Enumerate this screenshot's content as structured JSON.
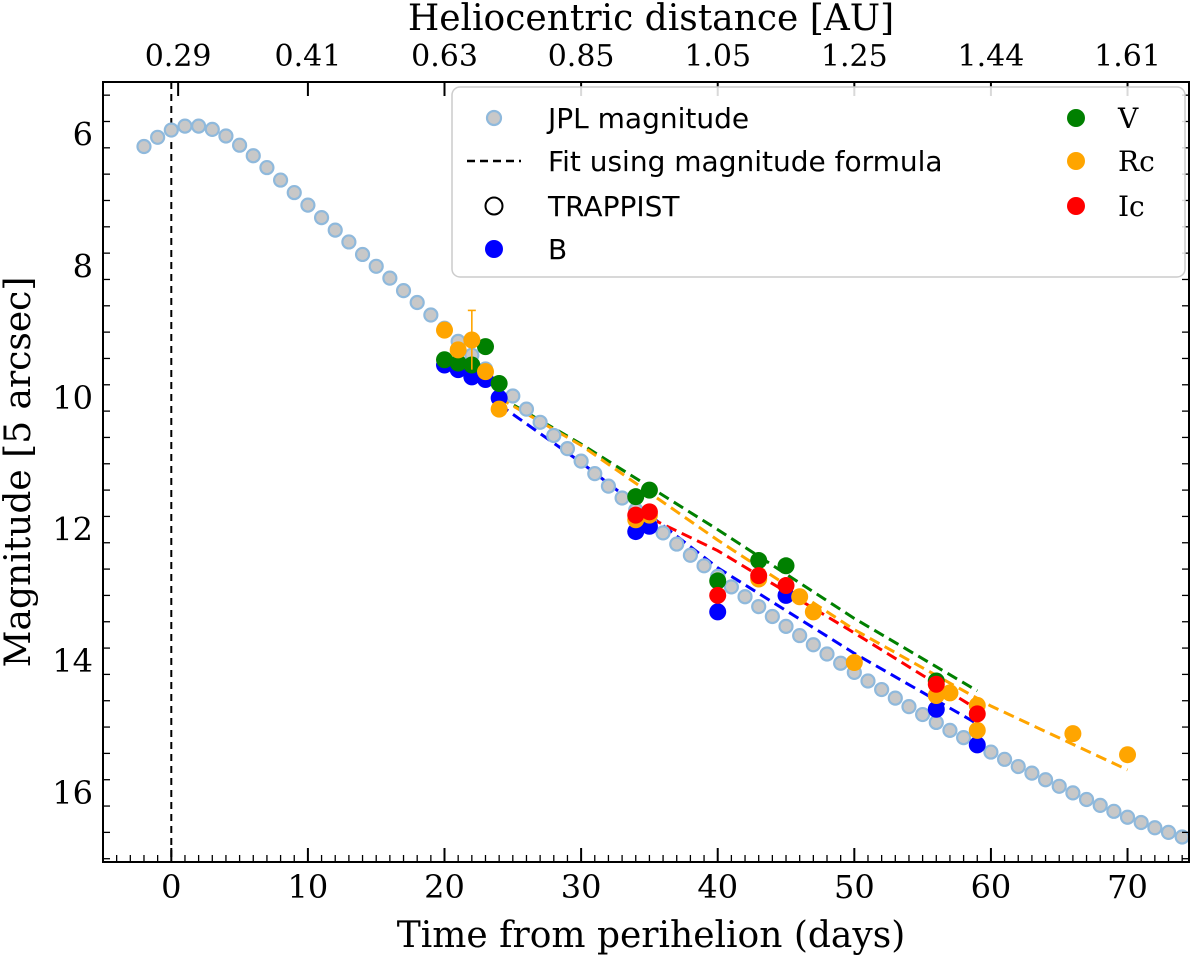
{
  "chart_data": {
    "type": "scatter",
    "title": "",
    "xlabel": "Time from perihelion (days)",
    "ylabel": "Magnitude [5 arcsec]",
    "top_axis_label": "Heliocentric distance [AU]",
    "xlim": [
      -5,
      74.5
    ],
    "ylim": [
      17.05,
      5.2
    ],
    "y_inverted": true,
    "x_ticks": [
      0,
      10,
      20,
      30,
      40,
      50,
      60,
      70
    ],
    "y_ticks": [
      6,
      8,
      10,
      12,
      14,
      16
    ],
    "top_ticks": [
      {
        "x": 0.5,
        "label": "0.29"
      },
      {
        "x": 10,
        "label": "0.41"
      },
      {
        "x": 20,
        "label": "0.63"
      },
      {
        "x": 30,
        "label": "0.85"
      },
      {
        "x": 40,
        "label": "1.05"
      },
      {
        "x": 50,
        "label": "1.25"
      },
      {
        "x": 60,
        "label": "1.44"
      },
      {
        "x": 70,
        "label": "1.61"
      }
    ],
    "perihelion_line_x": 0,
    "legend": {
      "placement": "top-right",
      "entries": [
        {
          "label": "JPL magnitude",
          "marker": "jpl"
        },
        {
          "label": "Fit using magnitude formula",
          "marker": "dashed"
        },
        {
          "label": "TRAPPIST",
          "marker": "open-circle"
        },
        {
          "label": "B",
          "marker": "B"
        },
        {
          "label": "V",
          "marker": "V"
        },
        {
          "label": "Rc",
          "marker": "Rc"
        },
        {
          "label": "Ic",
          "marker": "Ic"
        }
      ]
    },
    "colors": {
      "jpl_fill": "#c8c8c8",
      "jpl_edge": "#8fb9dc",
      "B": "#0000ff",
      "V": "#008000",
      "Rc": "#ffa500",
      "Ic": "#ff0000",
      "axis": "#000000"
    },
    "series": [
      {
        "name": "JPL magnitude",
        "key": "jpl",
        "x": [
          -2,
          -1,
          0,
          1,
          2,
          3,
          4,
          5,
          6,
          7,
          8,
          9,
          10,
          11,
          12,
          13,
          14,
          15,
          16,
          17,
          18,
          19,
          20,
          21,
          22,
          23,
          24,
          25,
          26,
          27,
          28,
          29,
          30,
          31,
          32,
          33,
          34,
          35,
          36,
          37,
          38,
          39,
          40,
          41,
          42,
          43,
          44,
          45,
          46,
          47,
          48,
          49,
          50,
          51,
          52,
          53,
          54,
          55,
          56,
          57,
          58,
          59,
          60,
          61,
          62,
          63,
          64,
          65,
          66,
          67,
          68,
          69,
          70,
          71,
          72,
          73,
          74
        ],
        "y": [
          6.18,
          6.04,
          5.93,
          5.87,
          5.87,
          5.92,
          6.02,
          6.16,
          6.32,
          6.5,
          6.69,
          6.88,
          7.07,
          7.26,
          7.45,
          7.63,
          7.82,
          8.0,
          8.18,
          8.37,
          8.55,
          8.74,
          8.94,
          9.14,
          9.35,
          9.56,
          9.77,
          9.97,
          10.17,
          10.37,
          10.57,
          10.77,
          10.96,
          11.15,
          11.34,
          11.52,
          11.7,
          11.88,
          12.05,
          12.22,
          12.39,
          12.55,
          12.71,
          12.87,
          13.02,
          13.17,
          13.32,
          13.47,
          13.61,
          13.75,
          13.89,
          14.03,
          14.17,
          14.3,
          14.43,
          14.56,
          14.69,
          14.81,
          14.93,
          15.05,
          15.16,
          15.27,
          15.38,
          15.49,
          15.6,
          15.7,
          15.8,
          15.9,
          16.0,
          16.1,
          16.19,
          16.28,
          16.37,
          16.45,
          16.53,
          16.6,
          16.67
        ]
      },
      {
        "name": "B",
        "key": "B",
        "x": [
          20,
          21,
          22,
          23,
          24,
          34,
          35,
          40,
          45,
          56,
          59
        ],
        "y": [
          9.5,
          9.57,
          9.68,
          9.72,
          10.0,
          12.03,
          11.95,
          13.25,
          13.0,
          14.73,
          15.27
        ]
      },
      {
        "name": "V",
        "key": "V",
        "x": [
          20,
          21,
          22,
          23,
          24,
          34,
          35,
          40,
          43,
          45,
          56
        ],
        "y": [
          9.42,
          9.47,
          9.5,
          9.22,
          9.78,
          11.5,
          11.4,
          12.78,
          12.47,
          12.55,
          14.3
        ]
      },
      {
        "name": "Rc",
        "key": "Rc",
        "x": [
          20,
          21,
          22,
          23,
          24,
          34,
          35,
          43,
          46,
          47,
          50,
          56,
          57,
          59,
          59,
          66,
          70
        ],
        "y": [
          8.97,
          9.27,
          9.12,
          9.6,
          10.17,
          11.85,
          11.78,
          12.75,
          13.02,
          13.25,
          14.02,
          14.52,
          14.48,
          14.67,
          15.05,
          15.1,
          15.42
        ]
      },
      {
        "name": "Ic",
        "key": "Ic",
        "x": [
          34,
          35,
          40,
          43,
          45,
          56,
          59
        ],
        "y": [
          11.78,
          11.73,
          13.0,
          12.7,
          12.85,
          14.35,
          14.8
        ]
      }
    ],
    "error_bars": [
      {
        "series": "Rc",
        "x": 22,
        "y": 9.12,
        "low": 8.67,
        "high": 9.57
      }
    ],
    "fit_lines": [
      {
        "name": "B fit",
        "color_key": "B",
        "x": [
          24,
          30,
          40,
          50,
          59
        ],
        "y": [
          10.1,
          10.98,
          12.58,
          13.88,
          14.95
        ]
      },
      {
        "name": "V fit",
        "color_key": "V",
        "x": [
          24,
          30,
          40,
          50,
          59
        ],
        "y": [
          9.98,
          10.7,
          12.0,
          13.35,
          14.45
        ]
      },
      {
        "name": "Rc fit",
        "color_key": "Rc",
        "x": [
          24,
          30,
          40,
          50,
          60,
          70
        ],
        "y": [
          10.0,
          10.72,
          12.16,
          13.52,
          14.68,
          15.65
        ]
      },
      {
        "name": "Ic fit",
        "color_key": "Ic",
        "x": [
          34,
          40,
          50,
          59
        ],
        "y": [
          11.72,
          12.32,
          13.57,
          14.73
        ]
      }
    ]
  }
}
